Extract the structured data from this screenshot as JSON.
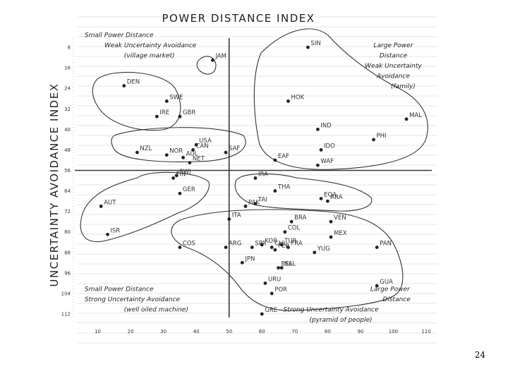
{
  "page_number": "24",
  "chart_data": {
    "type": "scatter",
    "title": "POWER DISTANCE INDEX",
    "ylabel": "UNCERTAINTY AVOIDANCE INDEX",
    "xlim": [
      0,
      110
    ],
    "ylim": [
      0,
      112
    ],
    "x_ticks": [
      "10",
      "20",
      "30",
      "40",
      "50",
      "60",
      "70",
      "80",
      "90",
      "100",
      "110"
    ],
    "y_ticks": [
      "8",
      "16",
      "24",
      "32",
      "40",
      "48",
      "56",
      "64",
      "72",
      "80",
      "88",
      "96",
      "104",
      "112"
    ],
    "divider_x": 50,
    "divider_y": 56,
    "points": [
      {
        "label": "JAM",
        "x": 45,
        "y": 13
      },
      {
        "label": "SIN",
        "x": 74,
        "y": 8
      },
      {
        "label": "DEN",
        "x": 18,
        "y": 23
      },
      {
        "label": "SWE",
        "x": 31,
        "y": 29
      },
      {
        "label": "HOK",
        "x": 68,
        "y": 29
      },
      {
        "label": "IRE",
        "x": 28,
        "y": 35
      },
      {
        "label": "GBR",
        "x": 35,
        "y": 35
      },
      {
        "label": "IND",
        "x": 77,
        "y": 40
      },
      {
        "label": "MAL",
        "x": 104,
        "y": 36
      },
      {
        "label": "PHI",
        "x": 94,
        "y": 44
      },
      {
        "label": "USA",
        "x": 40,
        "y": 46
      },
      {
        "label": "SAF",
        "x": 49,
        "y": 49
      },
      {
        "label": "CAN",
        "x": 39,
        "y": 48
      },
      {
        "label": "NZL",
        "x": 22,
        "y": 49
      },
      {
        "label": "AUL",
        "x": 36,
        "y": 51
      },
      {
        "label": "NOR",
        "x": 31,
        "y": 50
      },
      {
        "label": "NET",
        "x": 38,
        "y": 53
      },
      {
        "label": "IDO",
        "x": 78,
        "y": 48
      },
      {
        "label": "EAF",
        "x": 64,
        "y": 52
      },
      {
        "label": "WAF",
        "x": 77,
        "y": 54
      },
      {
        "label": "FIN",
        "x": 33,
        "y": 59
      },
      {
        "label": "SWI",
        "x": 34,
        "y": 58
      },
      {
        "label": "GER",
        "x": 35,
        "y": 65
      },
      {
        "label": "IRA",
        "x": 58,
        "y": 59
      },
      {
        "label": "PAK",
        "x": 55,
        "y": 70
      },
      {
        "label": "TAI",
        "x": 58,
        "y": 69
      },
      {
        "label": "THA",
        "x": 64,
        "y": 64
      },
      {
        "label": "EQA",
        "x": 78,
        "y": 67
      },
      {
        "label": "ARA",
        "x": 80,
        "y": 68
      },
      {
        "label": "AUT",
        "x": 11,
        "y": 70
      },
      {
        "label": "ISR",
        "x": 13,
        "y": 81
      },
      {
        "label": "ITA",
        "x": 50,
        "y": 75
      },
      {
        "label": "BRA",
        "x": 69,
        "y": 76
      },
      {
        "label": "VEN",
        "x": 81,
        "y": 76
      },
      {
        "label": "ARG",
        "x": 49,
        "y": 86
      },
      {
        "label": "COL",
        "x": 67,
        "y": 80
      },
      {
        "label": "MEX",
        "x": 81,
        "y": 82
      },
      {
        "label": "COS",
        "x": 35,
        "y": 86
      },
      {
        "label": "SPA",
        "x": 57,
        "y": 86
      },
      {
        "label": "CHL",
        "x": 63,
        "y": 86
      },
      {
        "label": "TUR",
        "x": 66,
        "y": 85
      },
      {
        "label": "FRA",
        "x": 68,
        "y": 86
      },
      {
        "label": "KOR",
        "x": 60,
        "y": 85
      },
      {
        "label": "PER",
        "x": 64,
        "y": 87
      },
      {
        "label": "YUG",
        "x": 76,
        "y": 88
      },
      {
        "label": "PAN",
        "x": 95,
        "y": 86
      },
      {
        "label": "JPN",
        "x": 54,
        "y": 92
      },
      {
        "label": "SAL",
        "x": 66,
        "y": 94
      },
      {
        "label": "BEL",
        "x": 65,
        "y": 94
      },
      {
        "label": "URU",
        "x": 61,
        "y": 100
      },
      {
        "label": "POR",
        "x": 63,
        "y": 104
      },
      {
        "label": "GUA",
        "x": 95,
        "y": 101
      },
      {
        "label": "GRE",
        "x": 60,
        "y": 112
      }
    ],
    "annotations": [
      {
        "text": "Small Power Distance",
        "x": 6,
        "y": 4,
        "anchor": "start"
      },
      {
        "text": "Weak Uncertainty Avoidance",
        "x": 12,
        "y": 8,
        "anchor": "start"
      },
      {
        "text": "(village market)",
        "x": 18,
        "y": 12,
        "anchor": "start"
      },
      {
        "text": "Large Power",
        "x": 100,
        "y": 8,
        "anchor": "middle"
      },
      {
        "text": "Distance",
        "x": 100,
        "y": 12,
        "anchor": "middle"
      },
      {
        "text": "Weak Uncertainty",
        "x": 100,
        "y": 16,
        "anchor": "middle"
      },
      {
        "text": "Avoidance",
        "x": 100,
        "y": 20,
        "anchor": "middle"
      },
      {
        "text": "(family)",
        "x": 103,
        "y": 24,
        "anchor": "middle"
      },
      {
        "text": "Small Power Distance",
        "x": 6,
        "y": 103,
        "anchor": "start"
      },
      {
        "text": "Strong Uncertainty Avoidance",
        "x": 6,
        "y": 107,
        "anchor": "start"
      },
      {
        "text": "(well oiled machine)",
        "x": 18,
        "y": 111,
        "anchor": "start"
      },
      {
        "text": "Large Power",
        "x": 99,
        "y": 103,
        "anchor": "middle"
      },
      {
        "text": "Distance",
        "x": 101,
        "y": 107,
        "anchor": "middle"
      },
      {
        "text": "Strong Uncertainty Avoidance",
        "x": 81,
        "y": 111,
        "anchor": "middle"
      },
      {
        "text": "(pyramid of people)",
        "x": 84,
        "y": 115,
        "anchor": "middle"
      }
    ]
  }
}
